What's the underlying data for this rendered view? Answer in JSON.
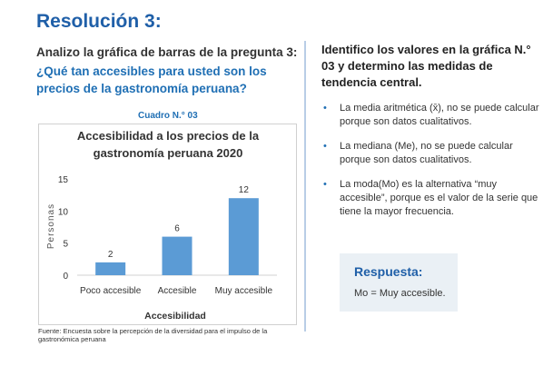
{
  "title": "Resolución 3:",
  "question": {
    "intro": "Analizo la gráfica de barras de la pregunta 3:",
    "text": "¿Qué tan accesibles para usted son los precios de la gastronomía peruana?"
  },
  "cuadro_label": "Cuadro N.° 03",
  "chart_data": {
    "type": "bar",
    "title_line1": "Accesibilidad a los precios de la",
    "title_line2": "gastronomía peruana 2020",
    "categories": [
      "Poco accesible",
      "Accesible",
      "Muy accesible"
    ],
    "values": [
      2,
      6,
      12
    ],
    "xlabel": "Accesibilidad",
    "ylabel": "Personas",
    "ylim": [
      0,
      15
    ],
    "yticks": [
      "0",
      "5",
      "10",
      "15"
    ],
    "bar_color": "#5b9bd5",
    "grid": false
  },
  "source": "Fuente: Encuesta sobre la percepción de la diversidad para el impulso de la gastronómica peruana",
  "right": {
    "heading": "Identifico los valores en la gráfica N.° 03 y determino las medidas de tendencia central.",
    "bullets": [
      "La media aritmética (x̄), no se puede calcular porque son datos cualitativos.",
      "La mediana (Me), no se puede calcular porque son datos cualitativos.",
      "La moda(Mo) es la alternativa “muy accesible”, porque es el valor de la serie que tiene la mayor frecuencia."
    ],
    "bullet_symbol": "•"
  },
  "answer": {
    "title": "Respuesta:",
    "text": "Mo = Muy accesible."
  },
  "colors": {
    "title_blue": "#1f5fa8",
    "accent_blue": "#1f6fb4",
    "answer_bg": "#eaf0f5"
  }
}
